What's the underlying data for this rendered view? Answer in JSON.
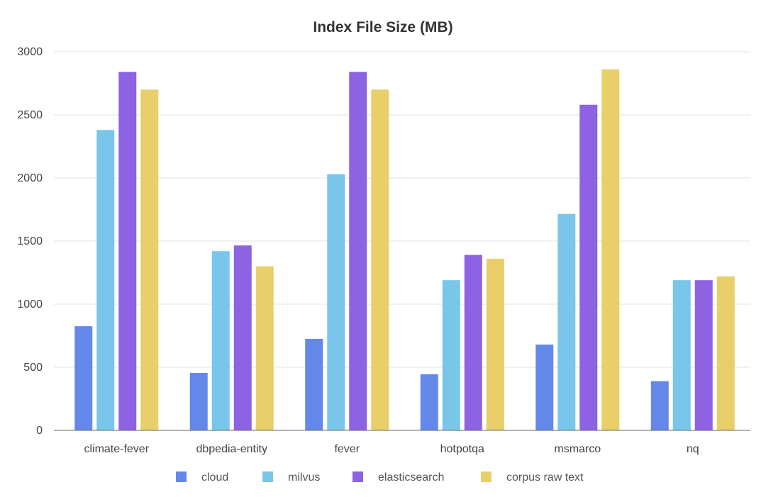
{
  "chart_data": {
    "type": "bar",
    "title": "Index File Size (MB)",
    "xlabel": "",
    "ylabel": "",
    "ylim": [
      0,
      3000
    ],
    "yticks": [
      0,
      500,
      1000,
      1500,
      2000,
      2500,
      3000
    ],
    "categories": [
      "climate-fever",
      "dbpedia-entity",
      "fever",
      "hotpotqa",
      "msmarco",
      "nq"
    ],
    "series": [
      {
        "name": "cloud",
        "color": "#6488ea",
        "values": [
          825,
          455,
          725,
          445,
          680,
          390
        ]
      },
      {
        "name": "milvus",
        "color": "#79c6ea",
        "values": [
          2380,
          1420,
          2030,
          1190,
          1715,
          1190
        ]
      },
      {
        "name": "elasticsearch",
        "color": "#8d62e3",
        "values": [
          2840,
          1465,
          2840,
          1390,
          2580,
          1190
        ]
      },
      {
        "name": "corpus raw text",
        "color": "#e8cf6a",
        "values": [
          2700,
          1300,
          2700,
          1360,
          2860,
          1220
        ]
      }
    ],
    "grid": true,
    "legend_position": "bottom-center"
  }
}
